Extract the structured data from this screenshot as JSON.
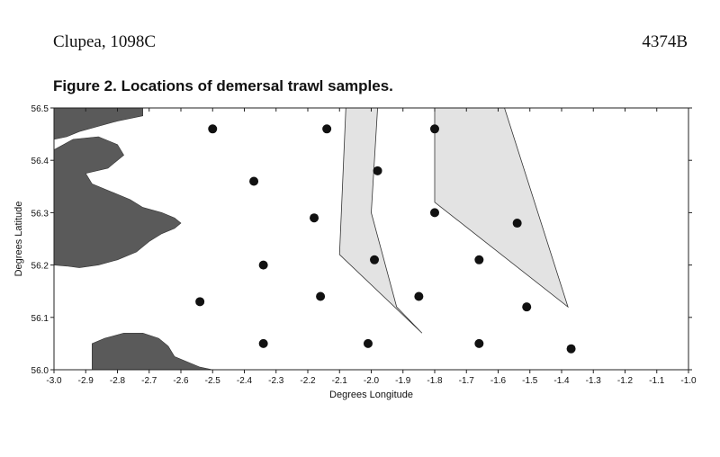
{
  "header": {
    "left": "Clupea, 1098C",
    "right": "4374B"
  },
  "chart_data": {
    "type": "scatter",
    "title": "Figure 2. Locations of demersal trawl samples.",
    "xlabel": "Degrees Longitude",
    "ylabel": "Degrees Latitude",
    "xlim": [
      -3.0,
      -1.0
    ],
    "ylim": [
      56.0,
      56.5
    ],
    "x_ticks": [
      "-3.0",
      "-2.9",
      "-2.8",
      "-2.7",
      "-2.6",
      "-2.5",
      "-2.4",
      "-2.3",
      "-2.2",
      "-2.1",
      "-2.0",
      "-1.9",
      "-1.8",
      "-1.7",
      "-1.6",
      "-1.5",
      "-1.4",
      "-1.3",
      "-1.2",
      "-1.1",
      "-1.0"
    ],
    "y_ticks": [
      "56.0",
      "56.1",
      "56.2",
      "56.3",
      "56.4",
      "56.5"
    ],
    "points": [
      {
        "x": -2.5,
        "y": 56.46
      },
      {
        "x": -2.14,
        "y": 56.46
      },
      {
        "x": -1.8,
        "y": 56.46
      },
      {
        "x": -2.37,
        "y": 56.36
      },
      {
        "x": -1.98,
        "y": 56.38
      },
      {
        "x": -2.18,
        "y": 56.29
      },
      {
        "x": -1.8,
        "y": 56.3
      },
      {
        "x": -1.54,
        "y": 56.28
      },
      {
        "x": -2.34,
        "y": 56.2
      },
      {
        "x": -1.99,
        "y": 56.21
      },
      {
        "x": -1.66,
        "y": 56.21
      },
      {
        "x": -2.54,
        "y": 56.13
      },
      {
        "x": -2.16,
        "y": 56.14
      },
      {
        "x": -1.85,
        "y": 56.14
      },
      {
        "x": -1.51,
        "y": 56.12
      },
      {
        "x": -2.34,
        "y": 56.05
      },
      {
        "x": -2.01,
        "y": 56.05
      },
      {
        "x": -1.66,
        "y": 56.05
      },
      {
        "x": -1.37,
        "y": 56.04
      }
    ],
    "polygons": [
      [
        [
          -2.08,
          56.5
        ],
        [
          -1.98,
          56.5
        ],
        [
          -2.0,
          56.3
        ],
        [
          -1.92,
          56.12
        ],
        [
          -1.84,
          56.07
        ],
        [
          -2.1,
          56.22
        ],
        [
          -2.08,
          56.5
        ]
      ],
      [
        [
          -1.8,
          56.5
        ],
        [
          -1.58,
          56.5
        ],
        [
          -1.38,
          56.12
        ],
        [
          -1.8,
          56.32
        ],
        [
          -1.8,
          56.5
        ]
      ]
    ],
    "land": [
      [
        [
          -3.0,
          56.5
        ],
        [
          -2.72,
          56.5
        ],
        [
          -2.72,
          56.485
        ],
        [
          -2.8,
          56.475
        ],
        [
          -2.86,
          56.465
        ],
        [
          -2.92,
          56.455
        ],
        [
          -2.96,
          56.445
        ],
        [
          -3.0,
          56.44
        ]
      ],
      [
        [
          -3.0,
          56.42
        ],
        [
          -2.94,
          56.44
        ],
        [
          -2.86,
          56.445
        ],
        [
          -2.8,
          56.43
        ],
        [
          -2.78,
          56.41
        ],
        [
          -2.83,
          56.385
        ],
        [
          -2.9,
          56.375
        ],
        [
          -2.88,
          56.355
        ],
        [
          -2.82,
          56.34
        ],
        [
          -2.76,
          56.325
        ],
        [
          -2.72,
          56.31
        ],
        [
          -2.66,
          56.3
        ],
        [
          -2.62,
          56.29
        ],
        [
          -2.6,
          56.28
        ],
        [
          -2.62,
          56.27
        ],
        [
          -2.66,
          56.26
        ],
        [
          -2.7,
          56.245
        ],
        [
          -2.74,
          56.225
        ],
        [
          -2.8,
          56.21
        ],
        [
          -2.86,
          56.2
        ],
        [
          -2.92,
          56.195
        ],
        [
          -2.96,
          56.198
        ],
        [
          -3.0,
          56.2
        ]
      ],
      [
        [
          -2.88,
          56.0
        ],
        [
          -2.88,
          56.05
        ],
        [
          -2.84,
          56.06
        ],
        [
          -2.78,
          56.07
        ],
        [
          -2.72,
          56.07
        ],
        [
          -2.67,
          56.06
        ],
        [
          -2.64,
          56.045
        ],
        [
          -2.62,
          56.025
        ],
        [
          -2.58,
          56.015
        ],
        [
          -2.54,
          56.005
        ],
        [
          -2.5,
          56.0
        ]
      ]
    ]
  }
}
